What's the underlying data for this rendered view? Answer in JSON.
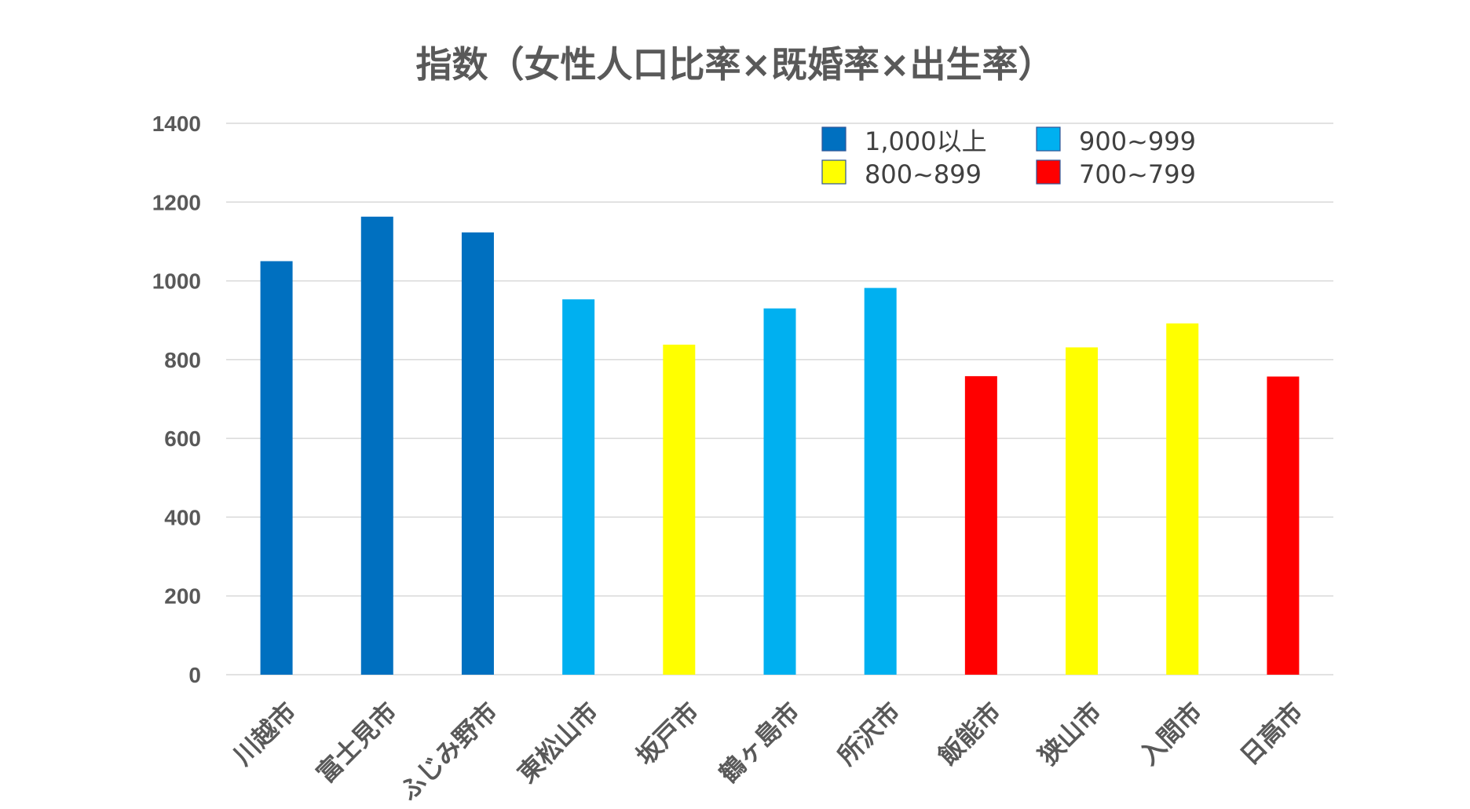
{
  "chart_data": {
    "type": "bar",
    "title": "指数（女性人口比率×既婚率×出生率）",
    "categories": [
      "川越市",
      "富士見市",
      "ふじみ野市",
      "東松山市",
      "坂戸市",
      "鶴ヶ島市",
      "所沢市",
      "飯能市",
      "狭山市",
      "入間市",
      "日高市"
    ],
    "values": [
      1050,
      1163,
      1123,
      953,
      838,
      930,
      982,
      758,
      831,
      892,
      757
    ],
    "ylim": [
      0,
      1400
    ],
    "yticks": [
      "0",
      "200",
      "400",
      "600",
      "800",
      "1000",
      "1200",
      "1400"
    ],
    "ytick_values": [
      0,
      200,
      400,
      600,
      800,
      1000,
      1200,
      1400
    ],
    "grid": true,
    "legend_position": "top-right",
    "legend": [
      {
        "label": "1,000以上",
        "color": "#0070C0",
        "min": 1000,
        "max": 99999
      },
      {
        "label": "900~999",
        "color": "#00B0F0",
        "min": 900,
        "max": 999.99
      },
      {
        "label": "800~899",
        "color": "#FFFF00",
        "min": 800,
        "max": 899.99
      },
      {
        "label": "700~799",
        "color": "#FF0000",
        "min": 700,
        "max": 799.99
      }
    ]
  }
}
